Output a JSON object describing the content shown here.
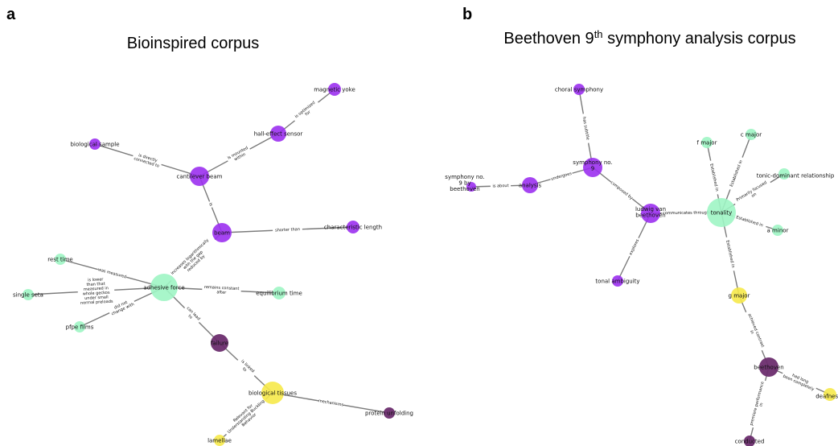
{
  "colors": {
    "purple": "#9b30f0",
    "green": "#9ff5c4",
    "yellow": "#f6e94a",
    "dark": "#6b2d6e",
    "edge": "#7a7a7a"
  },
  "panels": [
    {
      "letter": "a",
      "title": "Bioinspired corpus",
      "nodes": [
        {
          "id": "magnetic_yoke",
          "label": "magnetic yoke",
          "color": "purple"
        },
        {
          "id": "hall_effect_sensor",
          "label": "hall-effect sensor",
          "color": "purple"
        },
        {
          "id": "biological_sample",
          "label": "biological sample",
          "color": "purple"
        },
        {
          "id": "cantilever_beam",
          "label": "cantilever beam",
          "color": "purple"
        },
        {
          "id": "beam",
          "label": "beam",
          "color": "purple"
        },
        {
          "id": "characteristic_length",
          "label": "characteristic length",
          "color": "purple"
        },
        {
          "id": "rest_time",
          "label": "rest time",
          "color": "green"
        },
        {
          "id": "adhesive_force",
          "label": "adhesive force",
          "color": "green"
        },
        {
          "id": "single_seta",
          "label": "single seta",
          "color": "green"
        },
        {
          "id": "equilibrium_time",
          "label": "equilibrium time",
          "color": "green"
        },
        {
          "id": "pfpe_films",
          "label": "pfpe films",
          "color": "green"
        },
        {
          "id": "failure",
          "label": "failure",
          "color": "dark"
        },
        {
          "id": "biological_tissues",
          "label": "biological tissues",
          "color": "yellow"
        },
        {
          "id": "protein_unfolding",
          "label": "protein unfolding",
          "color": "dark"
        },
        {
          "id": "lamellae",
          "label": "lamellae",
          "color": "yellow"
        }
      ],
      "edges": [
        {
          "source": "hall_effect_sensor",
          "target": "magnetic_yoke",
          "label": "is optimized\nfor"
        },
        {
          "source": "cantilever_beam",
          "target": "hall_effect_sensor",
          "label": "is mounted\nwithin"
        },
        {
          "source": "biological_sample",
          "target": "cantilever_beam",
          "label": "is directly\nconnected to"
        },
        {
          "source": "cantilever_beam",
          "target": "beam",
          "label": "is"
        },
        {
          "source": "beam",
          "target": "characteristic_length",
          "label": "shorter than"
        },
        {
          "source": "adhesive_force",
          "target": "beam",
          "label": "increases logarithmically\nwith the gap\nreduced by"
        },
        {
          "source": "rest_time",
          "target": "adhesive_force",
          "label": "was measured"
        },
        {
          "source": "single_seta",
          "target": "adhesive_force",
          "label": "is lower\nthan that\nmeasured in\nwhole geckos\nunder small\nnormal preloads"
        },
        {
          "source": "adhesive_force",
          "target": "equilibrium_time",
          "label": "remains constant\nafter"
        },
        {
          "source": "pfpe_films",
          "target": "adhesive_force",
          "label": "did not\nchange with"
        },
        {
          "source": "adhesive_force",
          "target": "failure",
          "label": "can lead\nto"
        },
        {
          "source": "failure",
          "target": "biological_tissues",
          "label": "is linked\nto"
        },
        {
          "source": "biological_tissues",
          "target": "protein_unfolding",
          "label": "mechanisms"
        },
        {
          "source": "biological_tissues",
          "target": "lamellae",
          "label": "Relevant for\nUnderstanding Buckling\nBehavior"
        }
      ]
    },
    {
      "letter": "b",
      "title": "Beethoven 9",
      "title_sup": "th",
      "title_rest": " symphony analysis corpus",
      "nodes": [
        {
          "id": "choral_symphony",
          "label": "choral symphony",
          "color": "purple"
        },
        {
          "id": "symphony_no9",
          "label": "symphony no.\n9",
          "color": "purple"
        },
        {
          "id": "symphony_no9_by",
          "label": "symphony no.\n9 by\nbeethoven",
          "color": "purple"
        },
        {
          "id": "analysis",
          "label": "analysis",
          "color": "purple"
        },
        {
          "id": "ludwig",
          "label": "ludwig van\nbeethoven",
          "color": "purple"
        },
        {
          "id": "tonal_ambiguity",
          "label": "tonal ambiguity",
          "color": "purple"
        },
        {
          "id": "tonality",
          "label": "tonality",
          "color": "green"
        },
        {
          "id": "f_major",
          "label": "f major",
          "color": "green"
        },
        {
          "id": "c_major",
          "label": "c major",
          "color": "green"
        },
        {
          "id": "tonic_dominant",
          "label": "tonic-dominant relationship",
          "color": "green"
        },
        {
          "id": "a_minor",
          "label": "a minor",
          "color": "green"
        },
        {
          "id": "g_major",
          "label": "g major",
          "color": "yellow"
        },
        {
          "id": "beethoven",
          "label": "beethoven",
          "color": "dark"
        },
        {
          "id": "deafness",
          "label": "deafness",
          "color": "yellow"
        },
        {
          "id": "conducted",
          "label": "conducted",
          "color": "dark"
        }
      ],
      "edges": [
        {
          "source": "choral_symphony",
          "target": "symphony_no9",
          "label": "has subtitle"
        },
        {
          "source": "symphony_no9_by",
          "target": "analysis",
          "label": "is about"
        },
        {
          "source": "analysis",
          "target": "symphony_no9",
          "label": "undergoes"
        },
        {
          "source": "symphony_no9",
          "target": "ludwig",
          "label": "composed by"
        },
        {
          "source": "ludwig",
          "target": "tonal_ambiguity",
          "label": "explores"
        },
        {
          "source": "ludwig",
          "target": "tonality",
          "label": "communicates through"
        },
        {
          "source": "f_major",
          "target": "tonality",
          "label": "Established in"
        },
        {
          "source": "c_major",
          "target": "tonality",
          "label": "Established in"
        },
        {
          "source": "tonic_dominant",
          "target": "tonality",
          "label": "Primarily focused\non"
        },
        {
          "source": "tonality",
          "target": "a_minor",
          "label": "Established in"
        },
        {
          "source": "tonality",
          "target": "g_major",
          "label": "Established in"
        },
        {
          "source": "g_major",
          "target": "beethoven",
          "label": "achieved contrast\nin"
        },
        {
          "source": "beethoven",
          "target": "deafness",
          "label": "had long\nbeen completely"
        },
        {
          "source": "beethoven",
          "target": "conducted",
          "label": "premiere performance\nin"
        }
      ]
    }
  ]
}
